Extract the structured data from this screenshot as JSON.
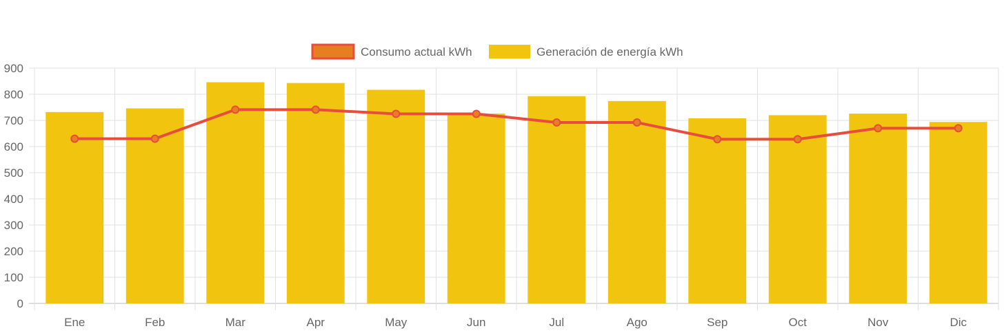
{
  "chart_data": {
    "type": "bar",
    "categories": [
      "Ene",
      "Feb",
      "Mar",
      "Apr",
      "May",
      "Jun",
      "Jul",
      "Ago",
      "Sep",
      "Oct",
      "Nov",
      "Dic"
    ],
    "series": [
      {
        "name": "Consumo actual kWh",
        "type": "line",
        "color": "#e74c3c",
        "fill": "#e67e22",
        "values": [
          630,
          630,
          741,
          741,
          725,
          725,
          692,
          692,
          628,
          628,
          670,
          670
        ]
      },
      {
        "name": "Generación de energía kWh",
        "type": "bar",
        "color": "#f1c40f",
        "values": [
          732,
          746,
          846,
          843,
          817,
          726,
          793,
          774,
          708,
          720,
          726,
          694
        ]
      }
    ],
    "ylim": [
      0,
      900
    ],
    "yticks": [
      0,
      100,
      200,
      300,
      400,
      500,
      600,
      700,
      800,
      900
    ],
    "grid": true,
    "legend_position": "top"
  }
}
